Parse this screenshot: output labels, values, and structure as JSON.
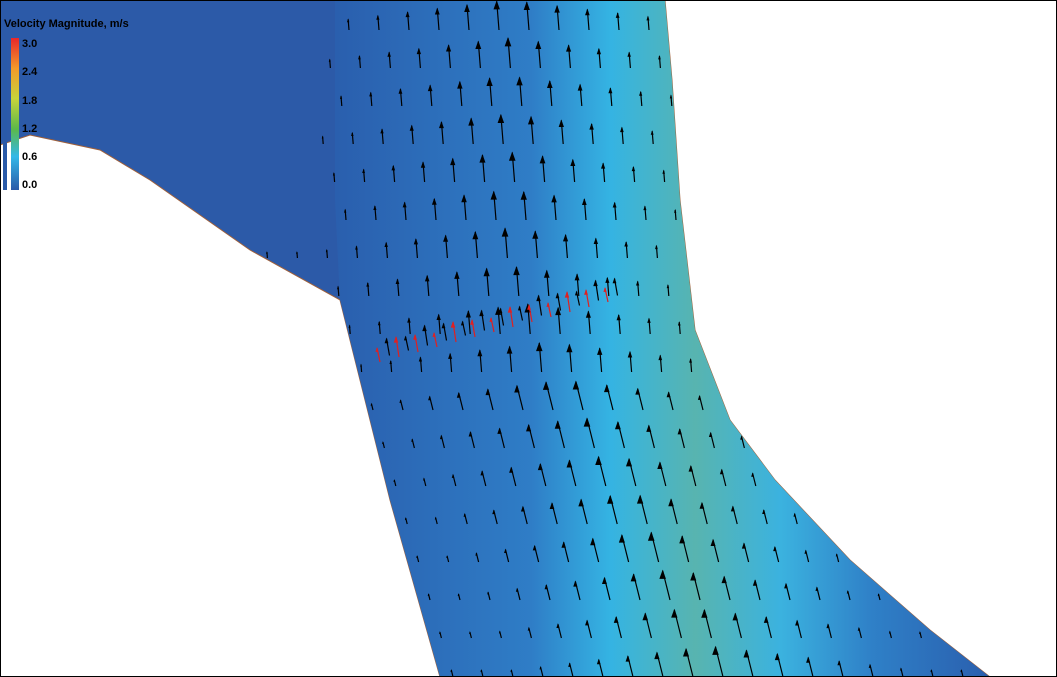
{
  "legend": {
    "title": "Velocity Magnitude, m/s",
    "ticks": [
      "3.0",
      "2.4",
      "1.8",
      "1.2",
      "0.6",
      "0.0"
    ]
  }
}
